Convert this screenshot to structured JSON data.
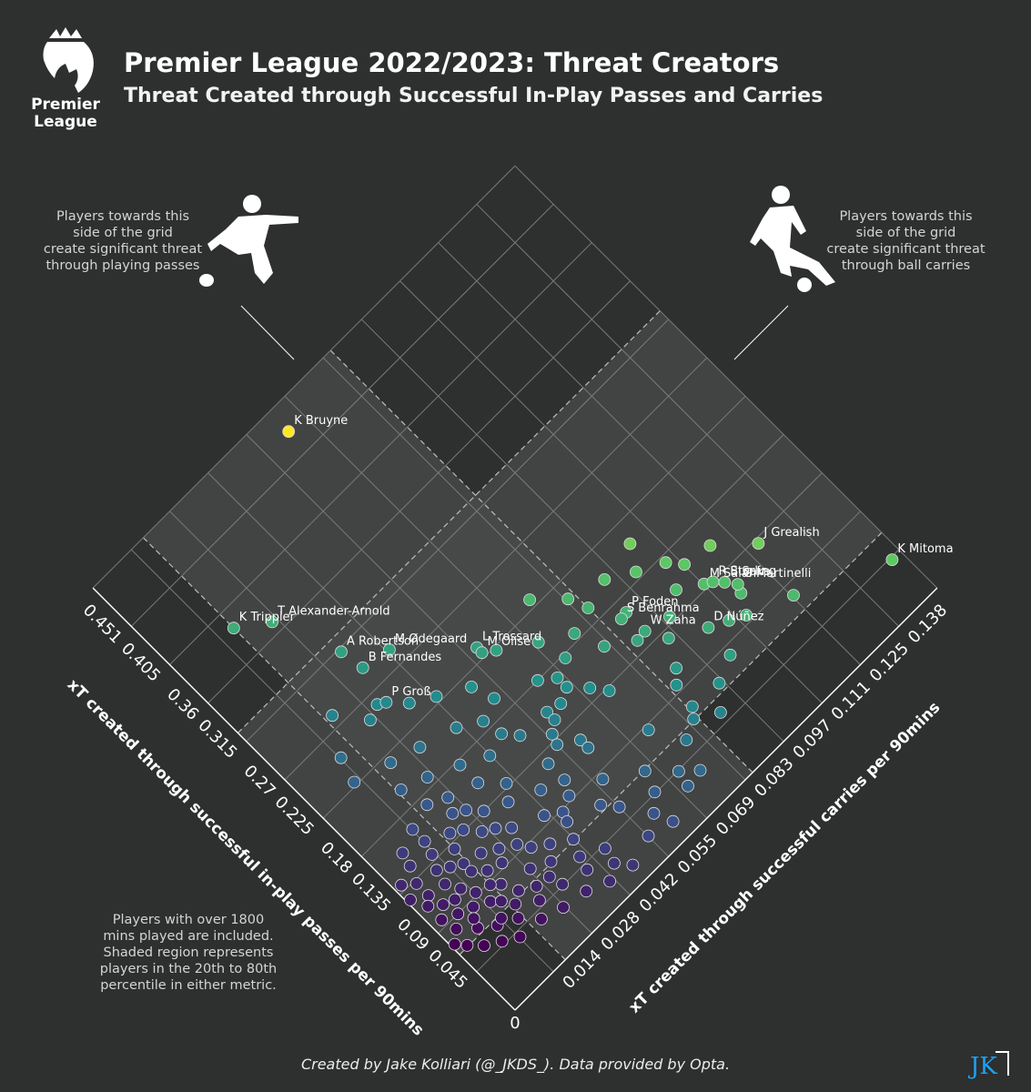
{
  "header": {
    "title": "Premier League 2022/2023: Threat Creators",
    "subtitle": "Threat Created through Successful In-Play Passes and Carries",
    "logo_text_line1": "Premier",
    "logo_text_line2": "League"
  },
  "notes": {
    "left": [
      "Players towards this",
      "side of the grid",
      "create significant threat",
      "through playing passes"
    ],
    "right": [
      "Players towards this",
      "side of the grid",
      "create significant threat",
      "through ball carries"
    ],
    "bottom": [
      "Players with over 1800",
      "mins played are included.",
      "Shaded region represents",
      "players in the 20th to 80th",
      "percentile in either metric."
    ]
  },
  "footer": {
    "credit": "Created by Jake Kolliari (@_JKDS_). Data provided by Opta.",
    "logo_text": "JK"
  },
  "icons": {
    "left_player": "player-passing-icon",
    "right_player": "player-dribbling-icon"
  },
  "colors": {
    "background": "#2e2f2f",
    "grid": "#7a7b7b",
    "shade": "#4a4b4b",
    "low": "#440154",
    "mid": "#3b528b",
    "teal": "#21908d",
    "green": "#5ec962",
    "high": "#fde725"
  },
  "chart_data": {
    "type": "scatter",
    "rotated_45deg": true,
    "origin_label": "0",
    "x_axis": {
      "label": "xT created through successful in-play passes per 90mins",
      "range": [
        0,
        0.495
      ],
      "ticks": [
        "0.045",
        "0.09",
        "0.135",
        "0.18",
        "0.225",
        "0.27",
        "0.315",
        "0.36",
        "0.405",
        "0.451"
      ],
      "shaded_percentile": [
        0.065,
        0.325
      ]
    },
    "y_axis": {
      "label": "xT created through successful carries per 90mins",
      "range": [
        0,
        0.151
      ],
      "ticks": [
        "0.014",
        "0.028",
        "0.042",
        "0.055",
        "0.069",
        "0.083",
        "0.097",
        "0.111",
        "0.125",
        "0.138"
      ],
      "shaded_percentile": [
        0.018,
        0.085
      ]
    },
    "grid": true,
    "labeled_points": [
      {
        "name": "K Bruyne",
        "x": 0.472,
        "y": 0.063
      },
      {
        "name": "J Grealish",
        "x": 0.131,
        "y": 0.127
      },
      {
        "name": "K Mitoma",
        "x": 0.043,
        "y": 0.148
      },
      {
        "name": "G Martinelli",
        "x": 0.119,
        "y": 0.116
      },
      {
        "name": "M Salah",
        "x": 0.139,
        "y": 0.11
      },
      {
        "name": "B Saka",
        "x": 0.128,
        "y": 0.114
      },
      {
        "name": "R Sterling",
        "x": 0.135,
        "y": 0.112
      },
      {
        "name": "T Alexander-Arnold",
        "x": 0.37,
        "y": 0.026
      },
      {
        "name": "K Trippier",
        "x": 0.389,
        "y": 0.018
      },
      {
        "name": "M Ødegaard",
        "x": 0.285,
        "y": 0.042
      },
      {
        "name": "L Trossard",
        "x": 0.235,
        "y": 0.058
      },
      {
        "name": "M Olise",
        "x": 0.229,
        "y": 0.058
      },
      {
        "name": "P Foden",
        "x": 0.168,
        "y": 0.091
      },
      {
        "name": "S Benrahma",
        "x": 0.167,
        "y": 0.089
      },
      {
        "name": "W Zaha",
        "x": 0.146,
        "y": 0.091
      },
      {
        "name": "D Núñez",
        "x": 0.111,
        "y": 0.103
      },
      {
        "name": "A Robertson",
        "x": 0.312,
        "y": 0.033
      },
      {
        "name": "B Fernandes",
        "x": 0.29,
        "y": 0.034
      },
      {
        "name": "P Groß",
        "x": 0.256,
        "y": 0.032
      }
    ],
    "points": [
      {
        "x": 0.193,
        "y": 0.085
      },
      {
        "x": 0.186,
        "y": 0.078
      },
      {
        "x": 0.177,
        "y": 0.072
      },
      {
        "x": 0.202,
        "y": 0.07
      },
      {
        "x": 0.222,
        "y": 0.061
      },
      {
        "x": 0.161,
        "y": 0.081
      },
      {
        "x": 0.17,
        "y": 0.067
      },
      {
        "x": 0.18,
        "y": 0.063
      },
      {
        "x": 0.145,
        "y": 0.088
      },
      {
        "x": 0.159,
        "y": 0.067
      },
      {
        "x": 0.153,
        "y": 0.063
      },
      {
        "x": 0.145,
        "y": 0.071
      },
      {
        "x": 0.156,
        "y": 0.059
      },
      {
        "x": 0.132,
        "y": 0.074
      },
      {
        "x": 0.147,
        "y": 0.059
      },
      {
        "x": 0.17,
        "y": 0.047
      },
      {
        "x": 0.188,
        "y": 0.046
      },
      {
        "x": 0.215,
        "y": 0.05
      },
      {
        "x": 0.23,
        "y": 0.042
      },
      {
        "x": 0.242,
        "y": 0.036
      },
      {
        "x": 0.26,
        "y": 0.03
      },
      {
        "x": 0.255,
        "y": 0.026
      },
      {
        "x": 0.28,
        "y": 0.02
      },
      {
        "x": 0.25,
        "y": 0.014
      },
      {
        "x": 0.21,
        "y": 0.03
      },
      {
        "x": 0.2,
        "y": 0.04
      },
      {
        "x": 0.195,
        "y": 0.052
      },
      {
        "x": 0.218,
        "y": 0.022
      },
      {
        "x": 0.228,
        "y": 0.012
      },
      {
        "x": 0.196,
        "y": 0.019
      },
      {
        "x": 0.188,
        "y": 0.026
      },
      {
        "x": 0.176,
        "y": 0.034
      },
      {
        "x": 0.164,
        "y": 0.041
      },
      {
        "x": 0.158,
        "y": 0.05
      },
      {
        "x": 0.14,
        "y": 0.056
      },
      {
        "x": 0.131,
        "y": 0.055
      },
      {
        "x": 0.125,
        "y": 0.05
      },
      {
        "x": 0.12,
        "y": 0.06
      },
      {
        "x": 0.111,
        "y": 0.06
      },
      {
        "x": 0.114,
        "y": 0.044
      },
      {
        "x": 0.097,
        "y": 0.04
      },
      {
        "x": 0.096,
        "y": 0.03
      },
      {
        "x": 0.088,
        "y": 0.044
      },
      {
        "x": 0.077,
        "y": 0.036
      },
      {
        "x": 0.066,
        "y": 0.033
      },
      {
        "x": 0.06,
        "y": 0.026
      },
      {
        "x": 0.068,
        "y": 0.022
      },
      {
        "x": 0.082,
        "y": 0.02
      },
      {
        "x": 0.098,
        "y": 0.02
      },
      {
        "x": 0.112,
        "y": 0.022
      },
      {
        "x": 0.124,
        "y": 0.026
      },
      {
        "x": 0.135,
        "y": 0.03
      },
      {
        "x": 0.146,
        "y": 0.027
      },
      {
        "x": 0.155,
        "y": 0.034
      },
      {
        "x": 0.138,
        "y": 0.039
      },
      {
        "x": 0.126,
        "y": 0.036
      },
      {
        "x": 0.109,
        "y": 0.032
      },
      {
        "x": 0.104,
        "y": 0.026
      },
      {
        "x": 0.116,
        "y": 0.017
      },
      {
        "x": 0.13,
        "y": 0.018
      },
      {
        "x": 0.142,
        "y": 0.02
      },
      {
        "x": 0.152,
        "y": 0.024
      },
      {
        "x": 0.164,
        "y": 0.026
      },
      {
        "x": 0.172,
        "y": 0.021
      },
      {
        "x": 0.166,
        "y": 0.014
      },
      {
        "x": 0.152,
        "y": 0.014
      },
      {
        "x": 0.14,
        "y": 0.013
      },
      {
        "x": 0.128,
        "y": 0.011
      },
      {
        "x": 0.115,
        "y": 0.01
      },
      {
        "x": 0.103,
        "y": 0.012
      },
      {
        "x": 0.092,
        "y": 0.014
      },
      {
        "x": 0.085,
        "y": 0.011
      },
      {
        "x": 0.078,
        "y": 0.015
      },
      {
        "x": 0.09,
        "y": 0.007
      },
      {
        "x": 0.104,
        "y": 0.006
      },
      {
        "x": 0.118,
        "y": 0.005
      },
      {
        "x": 0.132,
        "y": 0.005
      },
      {
        "x": 0.146,
        "y": 0.007
      },
      {
        "x": 0.158,
        "y": 0.008
      },
      {
        "x": 0.096,
        "y": 0.003
      },
      {
        "x": 0.082,
        "y": 0.004
      },
      {
        "x": 0.07,
        "y": 0.008
      },
      {
        "x": 0.06,
        "y": 0.012
      },
      {
        "x": 0.072,
        "y": 0.017
      },
      {
        "x": 0.107,
        "y": 0.017
      },
      {
        "x": 0.122,
        "y": 0.014
      },
      {
        "x": 0.136,
        "y": 0.023
      },
      {
        "x": 0.118,
        "y": 0.029
      },
      {
        "x": 0.094,
        "y": 0.024
      },
      {
        "x": 0.086,
        "y": 0.032
      },
      {
        "x": 0.074,
        "y": 0.028
      },
      {
        "x": 0.062,
        "y": 0.019
      },
      {
        "x": 0.052,
        "y": 0.017
      },
      {
        "x": 0.05,
        "y": 0.024
      },
      {
        "x": 0.048,
        "y": 0.01
      },
      {
        "x": 0.04,
        "y": 0.014
      },
      {
        "x": 0.056,
        "y": 0.006
      },
      {
        "x": 0.066,
        "y": 0.003
      },
      {
        "x": 0.078,
        "y": 0.009
      },
      {
        "x": 0.088,
        "y": 0.018
      },
      {
        "x": 0.1,
        "y": 0.009
      },
      {
        "x": 0.112,
        "y": 0.003
      },
      {
        "x": 0.126,
        "y": 0.001
      },
      {
        "x": 0.14,
        "y": 0.002
      },
      {
        "x": 0.074,
        "y": 0.001
      },
      {
        "x": 0.062,
        "y": 0.014
      },
      {
        "x": 0.058,
        "y": 0.03
      },
      {
        "x": 0.046,
        "y": 0.031
      },
      {
        "x": 0.038,
        "y": 0.021
      },
      {
        "x": 0.032,
        "y": 0.027
      },
      {
        "x": 0.028,
        "y": 0.034
      },
      {
        "x": 0.04,
        "y": 0.038
      },
      {
        "x": 0.052,
        "y": 0.039
      },
      {
        "x": 0.066,
        "y": 0.041
      },
      {
        "x": 0.08,
        "y": 0.043
      },
      {
        "x": 0.094,
        "y": 0.048
      },
      {
        "x": 0.106,
        "y": 0.05
      },
      {
        "x": 0.042,
        "y": 0.045
      },
      {
        "x": 0.028,
        "y": 0.044
      },
      {
        "x": 0.02,
        "y": 0.04
      },
      {
        "x": 0.016,
        "y": 0.047
      },
      {
        "x": 0.024,
        "y": 0.055
      },
      {
        "x": 0.034,
        "y": 0.06
      },
      {
        "x": 0.046,
        "y": 0.064
      },
      {
        "x": 0.058,
        "y": 0.055
      },
      {
        "x": 0.07,
        "y": 0.052
      },
      {
        "x": 0.084,
        "y": 0.057
      },
      {
        "x": 0.03,
        "y": 0.071
      },
      {
        "x": 0.018,
        "y": 0.062
      },
      {
        "x": 0.032,
        "y": 0.076
      },
      {
        "x": 0.044,
        "y": 0.072
      },
      {
        "x": 0.058,
        "y": 0.079
      },
      {
        "x": 0.074,
        "y": 0.086
      },
      {
        "x": 0.086,
        "y": 0.074
      },
      {
        "x": 0.064,
        "y": 0.066
      },
      {
        "x": 0.054,
        "y": 0.09
      },
      {
        "x": 0.072,
        "y": 0.095
      },
      {
        "x": 0.066,
        "y": 0.084
      },
      {
        "x": 0.096,
        "y": 0.087
      },
      {
        "x": 0.106,
        "y": 0.09
      },
      {
        "x": 0.082,
        "y": 0.102
      },
      {
        "x": 0.096,
        "y": 0.112
      },
      {
        "x": 0.112,
        "y": 0.115
      },
      {
        "x": 0.103,
        "y": 0.108
      },
      {
        "x": 0.128,
        "y": 0.094
      },
      {
        "x": 0.14,
        "y": 0.098
      },
      {
        "x": 0.152,
        "y": 0.104
      },
      {
        "x": 0.162,
        "y": 0.11
      },
      {
        "x": 0.174,
        "y": 0.107
      },
      {
        "x": 0.186,
        "y": 0.1
      },
      {
        "x": 0.2,
        "y": 0.093
      },
      {
        "x": 0.21,
        "y": 0.083
      },
      {
        "x": 0.232,
        "y": 0.076
      },
      {
        "x": 0.206,
        "y": 0.104
      },
      {
        "x": 0.158,
        "y": 0.118
      },
      {
        "x": 0.08,
        "y": 0.124
      }
    ]
  }
}
